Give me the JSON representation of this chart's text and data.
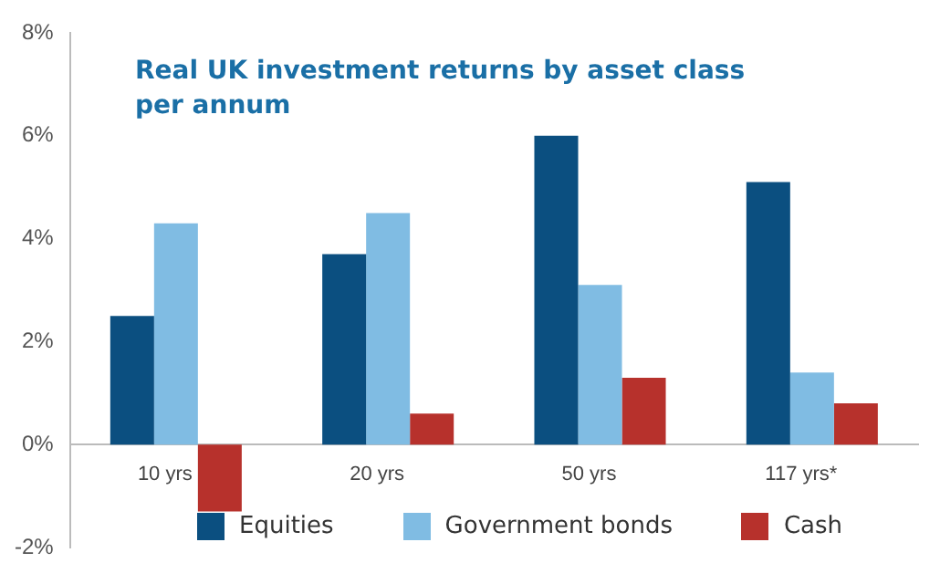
{
  "chart_data": {
    "type": "bar",
    "title": "Real UK investment returns by asset class per annum",
    "categories": [
      "10 yrs",
      "20 yrs",
      "50 yrs",
      "117 yrs*"
    ],
    "series": [
      {
        "name": "Equities",
        "color": "#0b4f80",
        "values": [
          2.5,
          3.7,
          6.0,
          5.1
        ]
      },
      {
        "name": "Government bonds",
        "color": "#80bce3",
        "values": [
          4.3,
          4.5,
          3.1,
          1.4
        ]
      },
      {
        "name": "Cash",
        "color": "#b7312c",
        "values": [
          -1.3,
          0.6,
          1.3,
          0.8
        ]
      }
    ],
    "ylim": [
      -2,
      8
    ],
    "yticks": [
      {
        "value": -2,
        "label": "-2%"
      },
      {
        "value": 0,
        "label": "0%"
      },
      {
        "value": 2,
        "label": "2%"
      },
      {
        "value": 4,
        "label": "4%"
      },
      {
        "value": 6,
        "label": "6%"
      },
      {
        "value": 8,
        "label": "8%"
      }
    ],
    "legend": "bottom"
  }
}
